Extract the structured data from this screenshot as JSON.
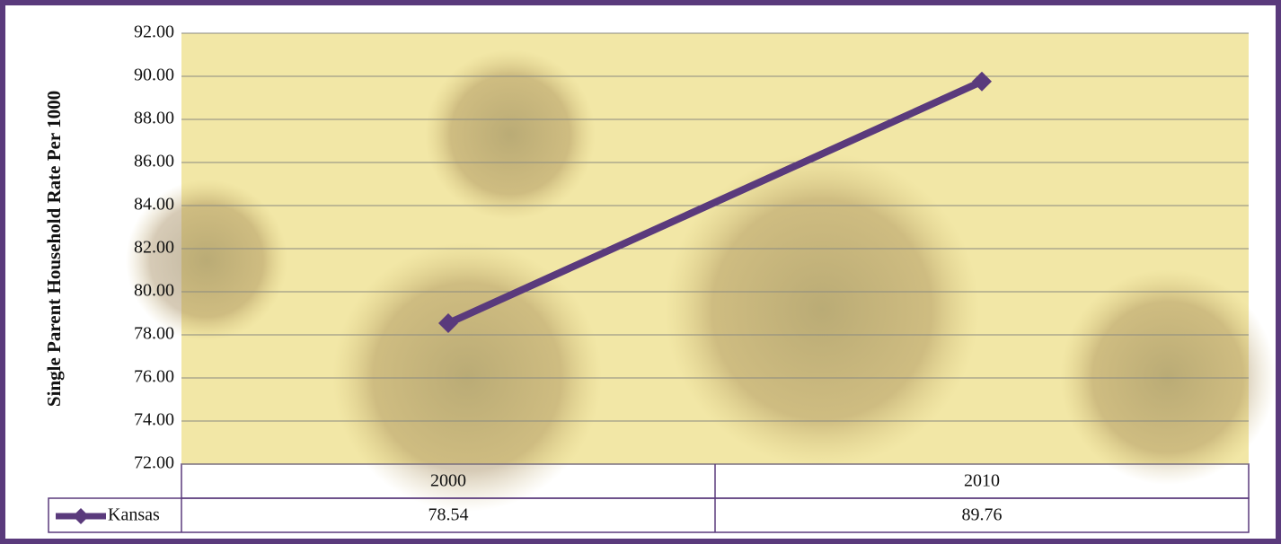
{
  "chart_data": {
    "type": "line",
    "y_label": "Single Parent Household Rate Per 1000",
    "categories": [
      "2000",
      "2010"
    ],
    "series": [
      {
        "name": "Kansas",
        "color": "#5a3a7c",
        "values": [
          78.54,
          89.76
        ]
      }
    ],
    "ylim": [
      72,
      92
    ],
    "yticks": [
      {
        "value": 72,
        "label": "72.00"
      },
      {
        "value": 74,
        "label": "74.00"
      },
      {
        "value": 76,
        "label": "76.00"
      },
      {
        "value": 78,
        "label": "78.00"
      },
      {
        "value": 80,
        "label": "80.00"
      },
      {
        "value": 82,
        "label": "82.00"
      },
      {
        "value": 84,
        "label": "84.00"
      },
      {
        "value": 86,
        "label": "86.00"
      },
      {
        "value": 88,
        "label": "88.00"
      },
      {
        "value": 90,
        "label": "90.00"
      },
      {
        "value": 92,
        "label": "92.00"
      }
    ],
    "grid": true,
    "data_table": true
  }
}
